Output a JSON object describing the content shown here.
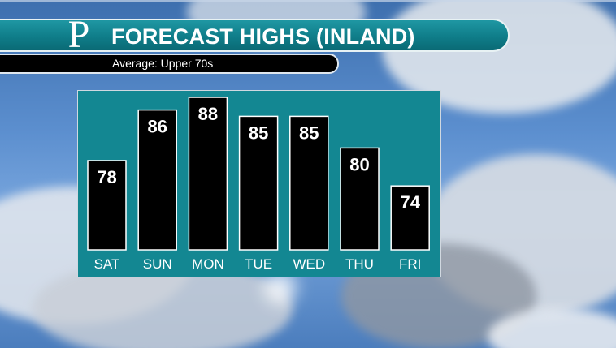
{
  "header": {
    "logo": "P",
    "title": "FORECAST HIGHS (INLAND)",
    "subtitle": "Average: Upper 70s"
  },
  "colors": {
    "panel": "#138792",
    "title_bar": "#0f7d89",
    "bar": "#000000",
    "bar_outline": "#ffffff",
    "axis_strip": "#2c2c2c"
  },
  "chart_data": {
    "type": "bar",
    "categories": [
      "SAT",
      "SUN",
      "MON",
      "TUE",
      "WED",
      "THU",
      "FRI"
    ],
    "values": [
      78,
      86,
      88,
      85,
      85,
      80,
      74
    ],
    "title": "FORECAST HIGHS (INLAND)",
    "subtitle": "Average: Upper 70s",
    "xlabel": "",
    "ylabel": "",
    "grid": false,
    "legend": "none"
  }
}
